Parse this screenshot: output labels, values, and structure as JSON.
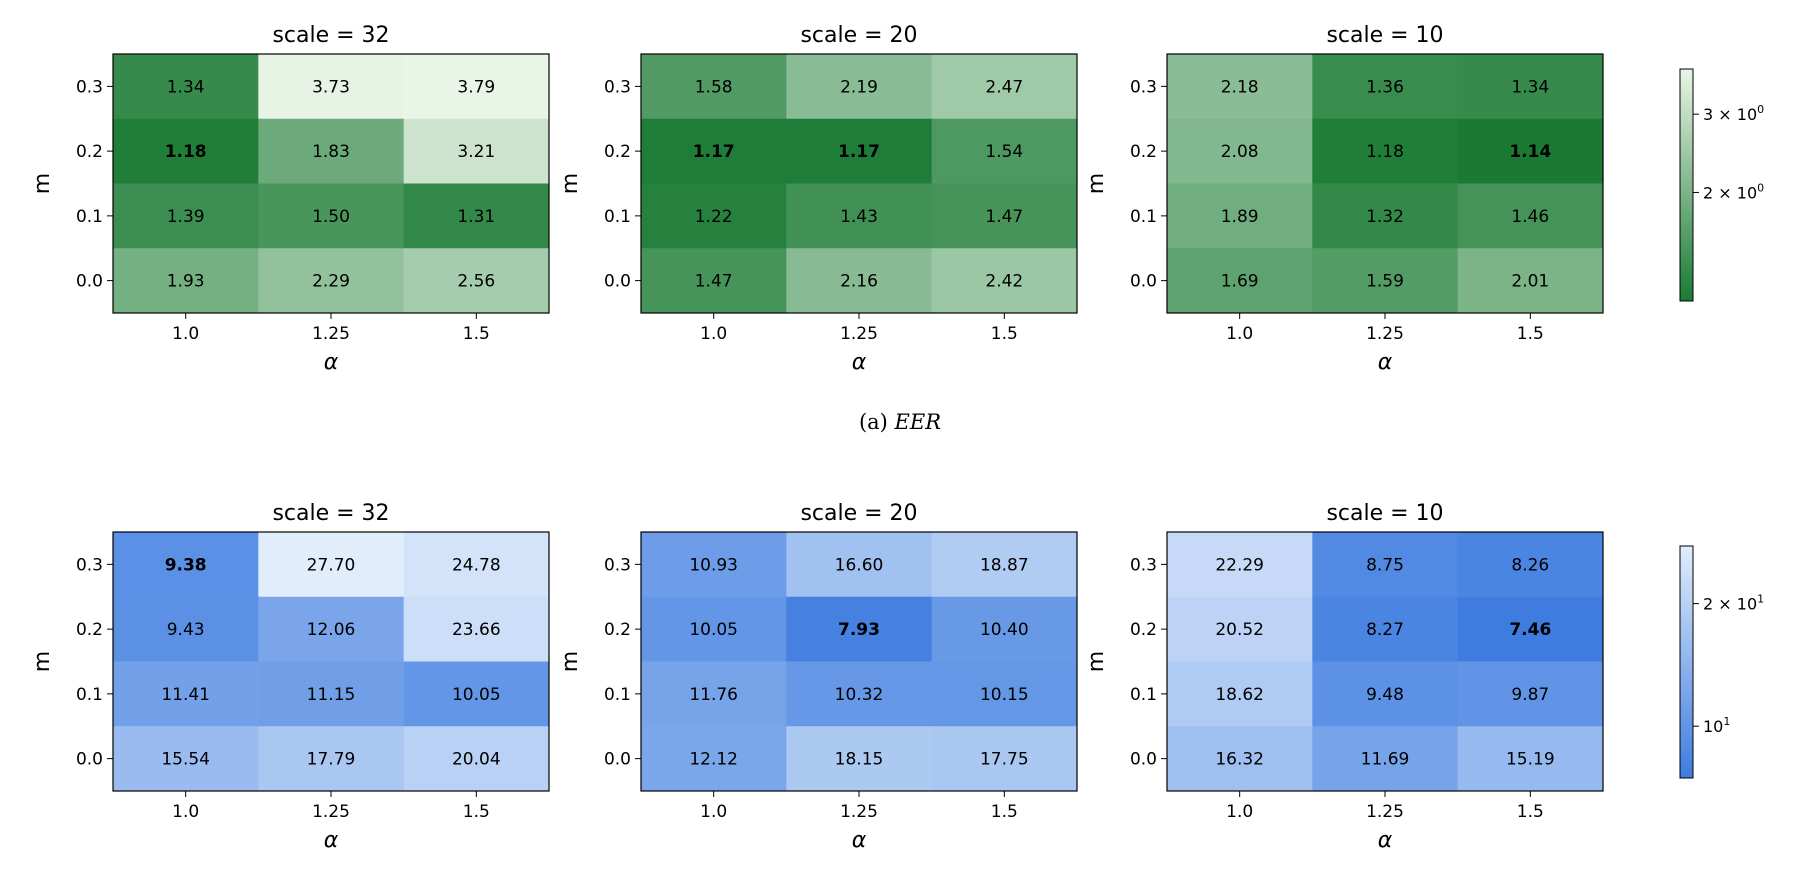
{
  "figure": {
    "top_caption_label": "(a)",
    "top_caption_metric": "EER"
  },
  "chart_data": [
    {
      "type": "heatmap",
      "title": "scale = 32",
      "xlabel": "α",
      "ylabel": "m",
      "x_categories": [
        "1.0",
        "1.25",
        "1.5"
      ],
      "y_categories": [
        "0.3",
        "0.2",
        "0.1",
        "0.0"
      ],
      "values": [
        [
          1.34,
          3.73,
          3.79
        ],
        [
          1.18,
          1.83,
          3.21
        ],
        [
          1.39,
          1.5,
          1.31
        ],
        [
          1.93,
          2.29,
          2.56
        ]
      ],
      "bold_cells": [
        [
          1,
          0
        ]
      ],
      "colormap": "Greens_r",
      "color_scale": "log",
      "color_range": [
        1.14,
        3.79
      ]
    },
    {
      "type": "heatmap",
      "title": "scale = 20",
      "xlabel": "α",
      "ylabel": "m",
      "x_categories": [
        "1.0",
        "1.25",
        "1.5"
      ],
      "y_categories": [
        "0.3",
        "0.2",
        "0.1",
        "0.0"
      ],
      "values": [
        [
          1.58,
          2.19,
          2.47
        ],
        [
          1.17,
          1.17,
          1.54
        ],
        [
          1.22,
          1.43,
          1.47
        ],
        [
          1.47,
          2.16,
          2.42
        ]
      ],
      "bold_cells": [
        [
          1,
          0
        ],
        [
          1,
          1
        ]
      ],
      "colormap": "Greens_r",
      "color_scale": "log",
      "color_range": [
        1.14,
        3.79
      ]
    },
    {
      "type": "heatmap",
      "title": "scale = 10",
      "xlabel": "α",
      "ylabel": "m",
      "x_categories": [
        "1.0",
        "1.25",
        "1.5"
      ],
      "y_categories": [
        "0.3",
        "0.2",
        "0.1",
        "0.0"
      ],
      "values": [
        [
          2.18,
          1.36,
          1.34
        ],
        [
          2.08,
          1.18,
          1.14
        ],
        [
          1.89,
          1.32,
          1.46
        ],
        [
          1.69,
          1.59,
          2.01
        ]
      ],
      "bold_cells": [
        [
          1,
          2
        ]
      ],
      "colormap": "Greens_r",
      "color_scale": "log",
      "color_range": [
        1.14,
        3.79
      ],
      "colorbar": {
        "ticks": [
          {
            "value": 3,
            "base": "3 × 10",
            "exp": "0"
          },
          {
            "value": 2,
            "base": "2 × 10",
            "exp": "0"
          }
        ]
      }
    },
    {
      "type": "heatmap",
      "title": "scale = 32",
      "xlabel": "α",
      "ylabel": "m",
      "x_categories": [
        "1.0",
        "1.25",
        "1.5"
      ],
      "y_categories": [
        "0.3",
        "0.2",
        "0.1",
        "0.0"
      ],
      "values": [
        [
          9.38,
          27.7,
          24.78
        ],
        [
          9.43,
          12.06,
          23.66
        ],
        [
          11.41,
          11.15,
          10.05
        ],
        [
          15.54,
          17.79,
          20.04
        ]
      ],
      "bold_cells": [
        [
          0,
          0
        ]
      ],
      "colormap": "Blues_r",
      "color_scale": "log",
      "color_range": [
        7.46,
        27.7
      ]
    },
    {
      "type": "heatmap",
      "title": "scale = 20",
      "xlabel": "α",
      "ylabel": "m",
      "x_categories": [
        "1.0",
        "1.25",
        "1.5"
      ],
      "y_categories": [
        "0.3",
        "0.2",
        "0.1",
        "0.0"
      ],
      "values": [
        [
          10.93,
          16.6,
          18.87
        ],
        [
          10.05,
          7.93,
          10.4
        ],
        [
          11.76,
          10.32,
          10.15
        ],
        [
          12.12,
          18.15,
          17.75
        ]
      ],
      "bold_cells": [
        [
          1,
          1
        ]
      ],
      "colormap": "Blues_r",
      "color_scale": "log",
      "color_range": [
        7.46,
        27.7
      ]
    },
    {
      "type": "heatmap",
      "title": "scale = 10",
      "xlabel": "α",
      "ylabel": "m",
      "x_categories": [
        "1.0",
        "1.25",
        "1.5"
      ],
      "y_categories": [
        "0.3",
        "0.2",
        "0.1",
        "0.0"
      ],
      "values": [
        [
          22.29,
          8.75,
          8.26
        ],
        [
          20.52,
          8.27,
          7.46
        ],
        [
          18.62,
          9.48,
          9.87
        ],
        [
          16.32,
          11.69,
          15.19
        ]
      ],
      "bold_cells": [
        [
          1,
          2
        ]
      ],
      "colormap": "Blues_r",
      "color_scale": "log",
      "color_range": [
        7.46,
        27.7
      ],
      "colorbar": {
        "ticks": [
          {
            "value": 20,
            "base": "2 × 10",
            "exp": "1"
          },
          {
            "value": 10,
            "base": "10",
            "exp": "1"
          }
        ]
      }
    }
  ],
  "colors": {
    "green_low": "#1a7a34",
    "green_high": "#e9f5e7",
    "blue_low": "#3e7ce0",
    "blue_high": "#e1edfb"
  }
}
